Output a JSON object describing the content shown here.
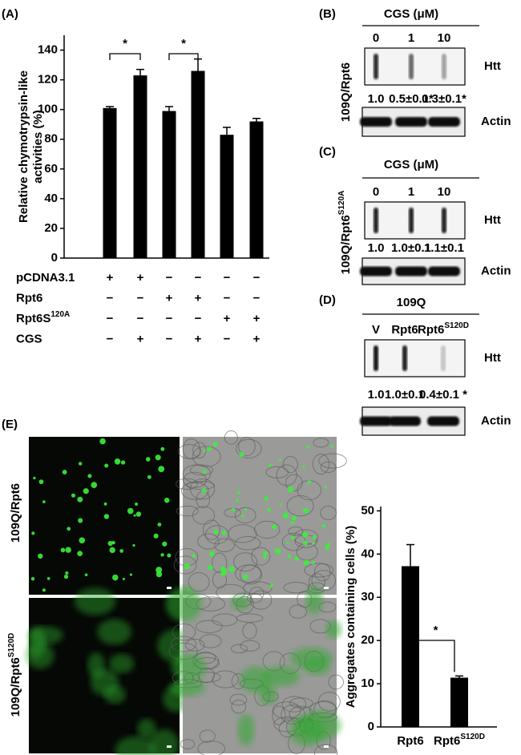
{
  "panel_labels": [
    "(A)",
    "(B)",
    "(C)",
    "(D)",
    "(E)"
  ],
  "chart_data": [
    {
      "type": "bar",
      "ylabel": [
        "Relative chymotrypsin-like",
        "activities (%)"
      ],
      "values": [
        101,
        123,
        99,
        126,
        83,
        92
      ],
      "errors": [
        1,
        4,
        3,
        8,
        5,
        2
      ],
      "color": "#000000",
      "ylim": [
        0,
        150
      ],
      "yticks": [
        0,
        20,
        40,
        60,
        80,
        100,
        120,
        140
      ],
      "significance_labels": [
        "*",
        "*"
      ],
      "conditions": [
        {
          "name": {
            "text": "pCDNA3.1"
          },
          "marks": [
            "+",
            "+",
            "−",
            "−",
            "−",
            "−"
          ]
        },
        {
          "name": {
            "text": "Rpt6"
          },
          "marks": [
            "−",
            "−",
            "+",
            "+",
            "−",
            "−"
          ]
        },
        {
          "name": {
            "text": "Rpt6S",
            "sup": "120A"
          },
          "marks": [
            "−",
            "−",
            "−",
            "−",
            "+",
            "+"
          ]
        },
        {
          "name": {
            "text": "CGS"
          },
          "marks": [
            "−",
            "+",
            "−",
            "+",
            "−",
            "+"
          ]
        }
      ]
    },
    {
      "type": "bar",
      "ylabel": [
        "Aggregates containing cells (%)"
      ],
      "categories": [
        {
          "text": "Rpt6"
        },
        {
          "text": "Rpt6",
          "sup": "S120D"
        }
      ],
      "values": [
        37.2,
        11.4
      ],
      "errors": [
        5,
        0.4
      ],
      "color": "#000000",
      "ylim": [
        0,
        51
      ],
      "yticks": [
        0,
        10,
        20,
        30,
        40,
        50
      ],
      "significance_labels": [
        "*"
      ]
    }
  ],
  "blots": [
    {
      "header": "CGS (μM)",
      "side": {
        "text": "109Q/Rpt6"
      },
      "lanes": [
        {
          "text": "0"
        },
        {
          "text": "1"
        },
        {
          "text": "10"
        }
      ],
      "rows": [
        {
          "label": "Htt",
          "quant": [
            "1.0",
            "0.5±0.1*",
            "0.3±0.1*"
          ]
        },
        {
          "label": "Actin"
        }
      ]
    },
    {
      "header": "CGS (μM)",
      "side": {
        "text": "109Q/Rpt6",
        "sup": "S120A"
      },
      "lanes": [
        {
          "text": "0"
        },
        {
          "text": "1"
        },
        {
          "text": "10"
        }
      ],
      "rows": [
        {
          "label": "Htt",
          "quant": [
            "1.0",
            "1.0±0.1",
            "1.1±0.1"
          ]
        },
        {
          "label": "Actin"
        }
      ]
    },
    {
      "header": "109Q",
      "lanes": [
        {
          "text": "V"
        },
        {
          "text": "Rpt6"
        },
        {
          "text": "Rpt6",
          "sup": "S120D"
        }
      ],
      "rows": [
        {
          "label": "Htt",
          "quant": [
            "1.0",
            "1.0±0.1",
            "0.4±0.1 *"
          ]
        },
        {
          "label": "Actin"
        }
      ]
    }
  ],
  "micrographs": {
    "row_labels": [
      {
        "text": "109Q/Rpt6"
      },
      {
        "text": "109Q/Rpt6",
        "sup": "S120D"
      }
    ]
  }
}
